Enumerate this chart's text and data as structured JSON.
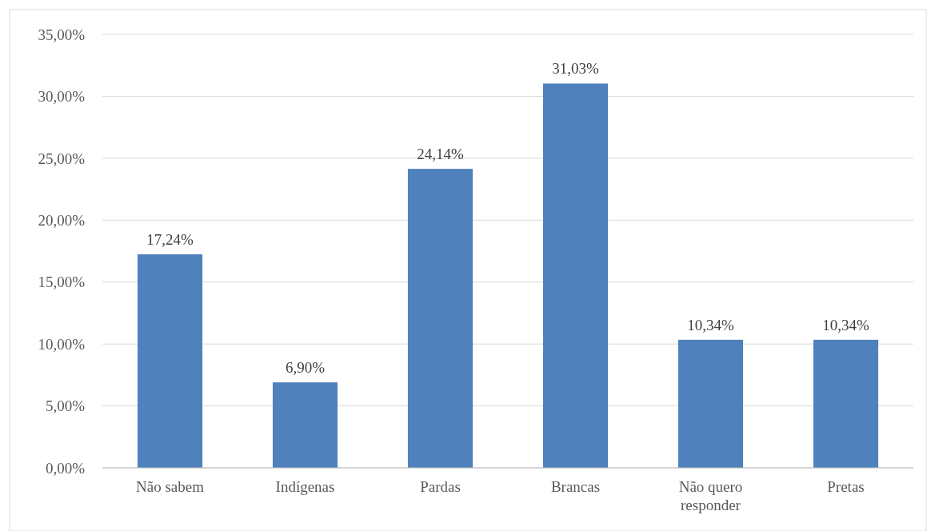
{
  "chart_data": {
    "type": "bar",
    "categories": [
      "Não sabem",
      "Indígenas",
      "Pardas",
      "Brancas",
      "Não quero responder",
      "Pretas"
    ],
    "values": [
      17.24,
      6.9,
      24.14,
      31.03,
      10.34,
      10.34
    ],
    "value_labels": [
      "17,24%",
      "6,90%",
      "24,14%",
      "31,03%",
      "10,34%",
      "10,34%"
    ],
    "color": "#4f81bd",
    "ylim": [
      0,
      35
    ],
    "yticks": [
      {
        "value": 0,
        "label": "0,00%"
      },
      {
        "value": 5,
        "label": "5,00%"
      },
      {
        "value": 10,
        "label": "10,00%"
      },
      {
        "value": 15,
        "label": "15,00%"
      },
      {
        "value": 20,
        "label": "20,00%"
      },
      {
        "value": 25,
        "label": "25,00%"
      },
      {
        "value": 30,
        "label": "30,00%"
      },
      {
        "value": 35,
        "label": "35,00%"
      }
    ],
    "grid": "y"
  }
}
